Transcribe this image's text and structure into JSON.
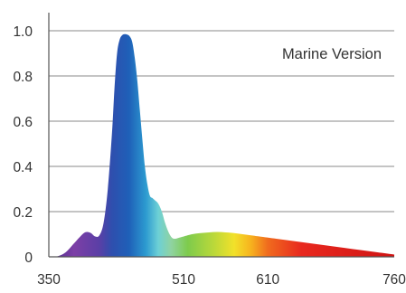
{
  "chart_data": {
    "type": "area",
    "title": "",
    "xlabel": "",
    "ylabel": "",
    "annotation": "Marine Version",
    "xlim": [
      350,
      760
    ],
    "ylim": [
      0,
      1.0
    ],
    "grid": true,
    "x_ticks": [
      {
        "value": 350,
        "label": "350"
      },
      {
        "value": 510,
        "label": "510"
      },
      {
        "value": 610,
        "label": "610"
      },
      {
        "value": 760,
        "label": "760"
      }
    ],
    "y_ticks": [
      {
        "value": 0,
        "label": "0"
      },
      {
        "value": 0.2,
        "label": "0.2"
      },
      {
        "value": 0.4,
        "label": "0.4"
      },
      {
        "value": 0.6,
        "label": "0.6"
      },
      {
        "value": 0.8,
        "label": "0.8"
      },
      {
        "value": 1.0,
        "label": "1.0"
      }
    ],
    "series": [
      {
        "x": [
          350,
          360,
          370,
          380,
          390,
          395,
          400,
          405,
          410,
          415,
          420,
          425,
          428,
          431,
          434,
          437,
          440,
          443,
          446,
          449,
          452,
          455,
          458,
          461,
          464,
          467,
          470,
          473,
          476,
          479,
          482,
          485,
          488,
          492,
          496,
          500,
          505,
          510,
          520,
          530,
          540,
          550,
          560,
          570,
          580,
          590,
          600,
          620,
          640,
          660,
          680,
          700,
          720,
          740,
          760
        ],
        "y": [
          0,
          0.002,
          0.02,
          0.06,
          0.1,
          0.11,
          0.105,
          0.09,
          0.095,
          0.15,
          0.3,
          0.55,
          0.75,
          0.9,
          0.96,
          0.98,
          0.985,
          0.983,
          0.975,
          0.95,
          0.88,
          0.78,
          0.65,
          0.52,
          0.4,
          0.32,
          0.27,
          0.26,
          0.25,
          0.24,
          0.22,
          0.19,
          0.15,
          0.11,
          0.085,
          0.08,
          0.085,
          0.09,
          0.1,
          0.105,
          0.108,
          0.11,
          0.108,
          0.105,
          0.1,
          0.095,
          0.09,
          0.08,
          0.07,
          0.06,
          0.05,
          0.04,
          0.03,
          0.02,
          0.01
        ]
      }
    ],
    "colors": {
      "grid": "#8a8a8a",
      "axis": "#555555",
      "text": "#333333",
      "spectrum_stops": [
        {
          "nm": 350,
          "color": "#4a2c8c"
        },
        {
          "nm": 380,
          "color": "#7d3fa6"
        },
        {
          "nm": 410,
          "color": "#5a3fa6"
        },
        {
          "nm": 425,
          "color": "#2e4fae"
        },
        {
          "nm": 445,
          "color": "#1f60b8"
        },
        {
          "nm": 465,
          "color": "#2c9ad0"
        },
        {
          "nm": 480,
          "color": "#6dd0d6"
        },
        {
          "nm": 495,
          "color": "#8fd3a2"
        },
        {
          "nm": 515,
          "color": "#7ecb4c"
        },
        {
          "nm": 545,
          "color": "#b9d83a"
        },
        {
          "nm": 570,
          "color": "#f2e12a"
        },
        {
          "nm": 590,
          "color": "#f7b21e"
        },
        {
          "nm": 610,
          "color": "#f06b1e"
        },
        {
          "nm": 650,
          "color": "#e8281e"
        },
        {
          "nm": 760,
          "color": "#cf1414"
        }
      ]
    }
  }
}
